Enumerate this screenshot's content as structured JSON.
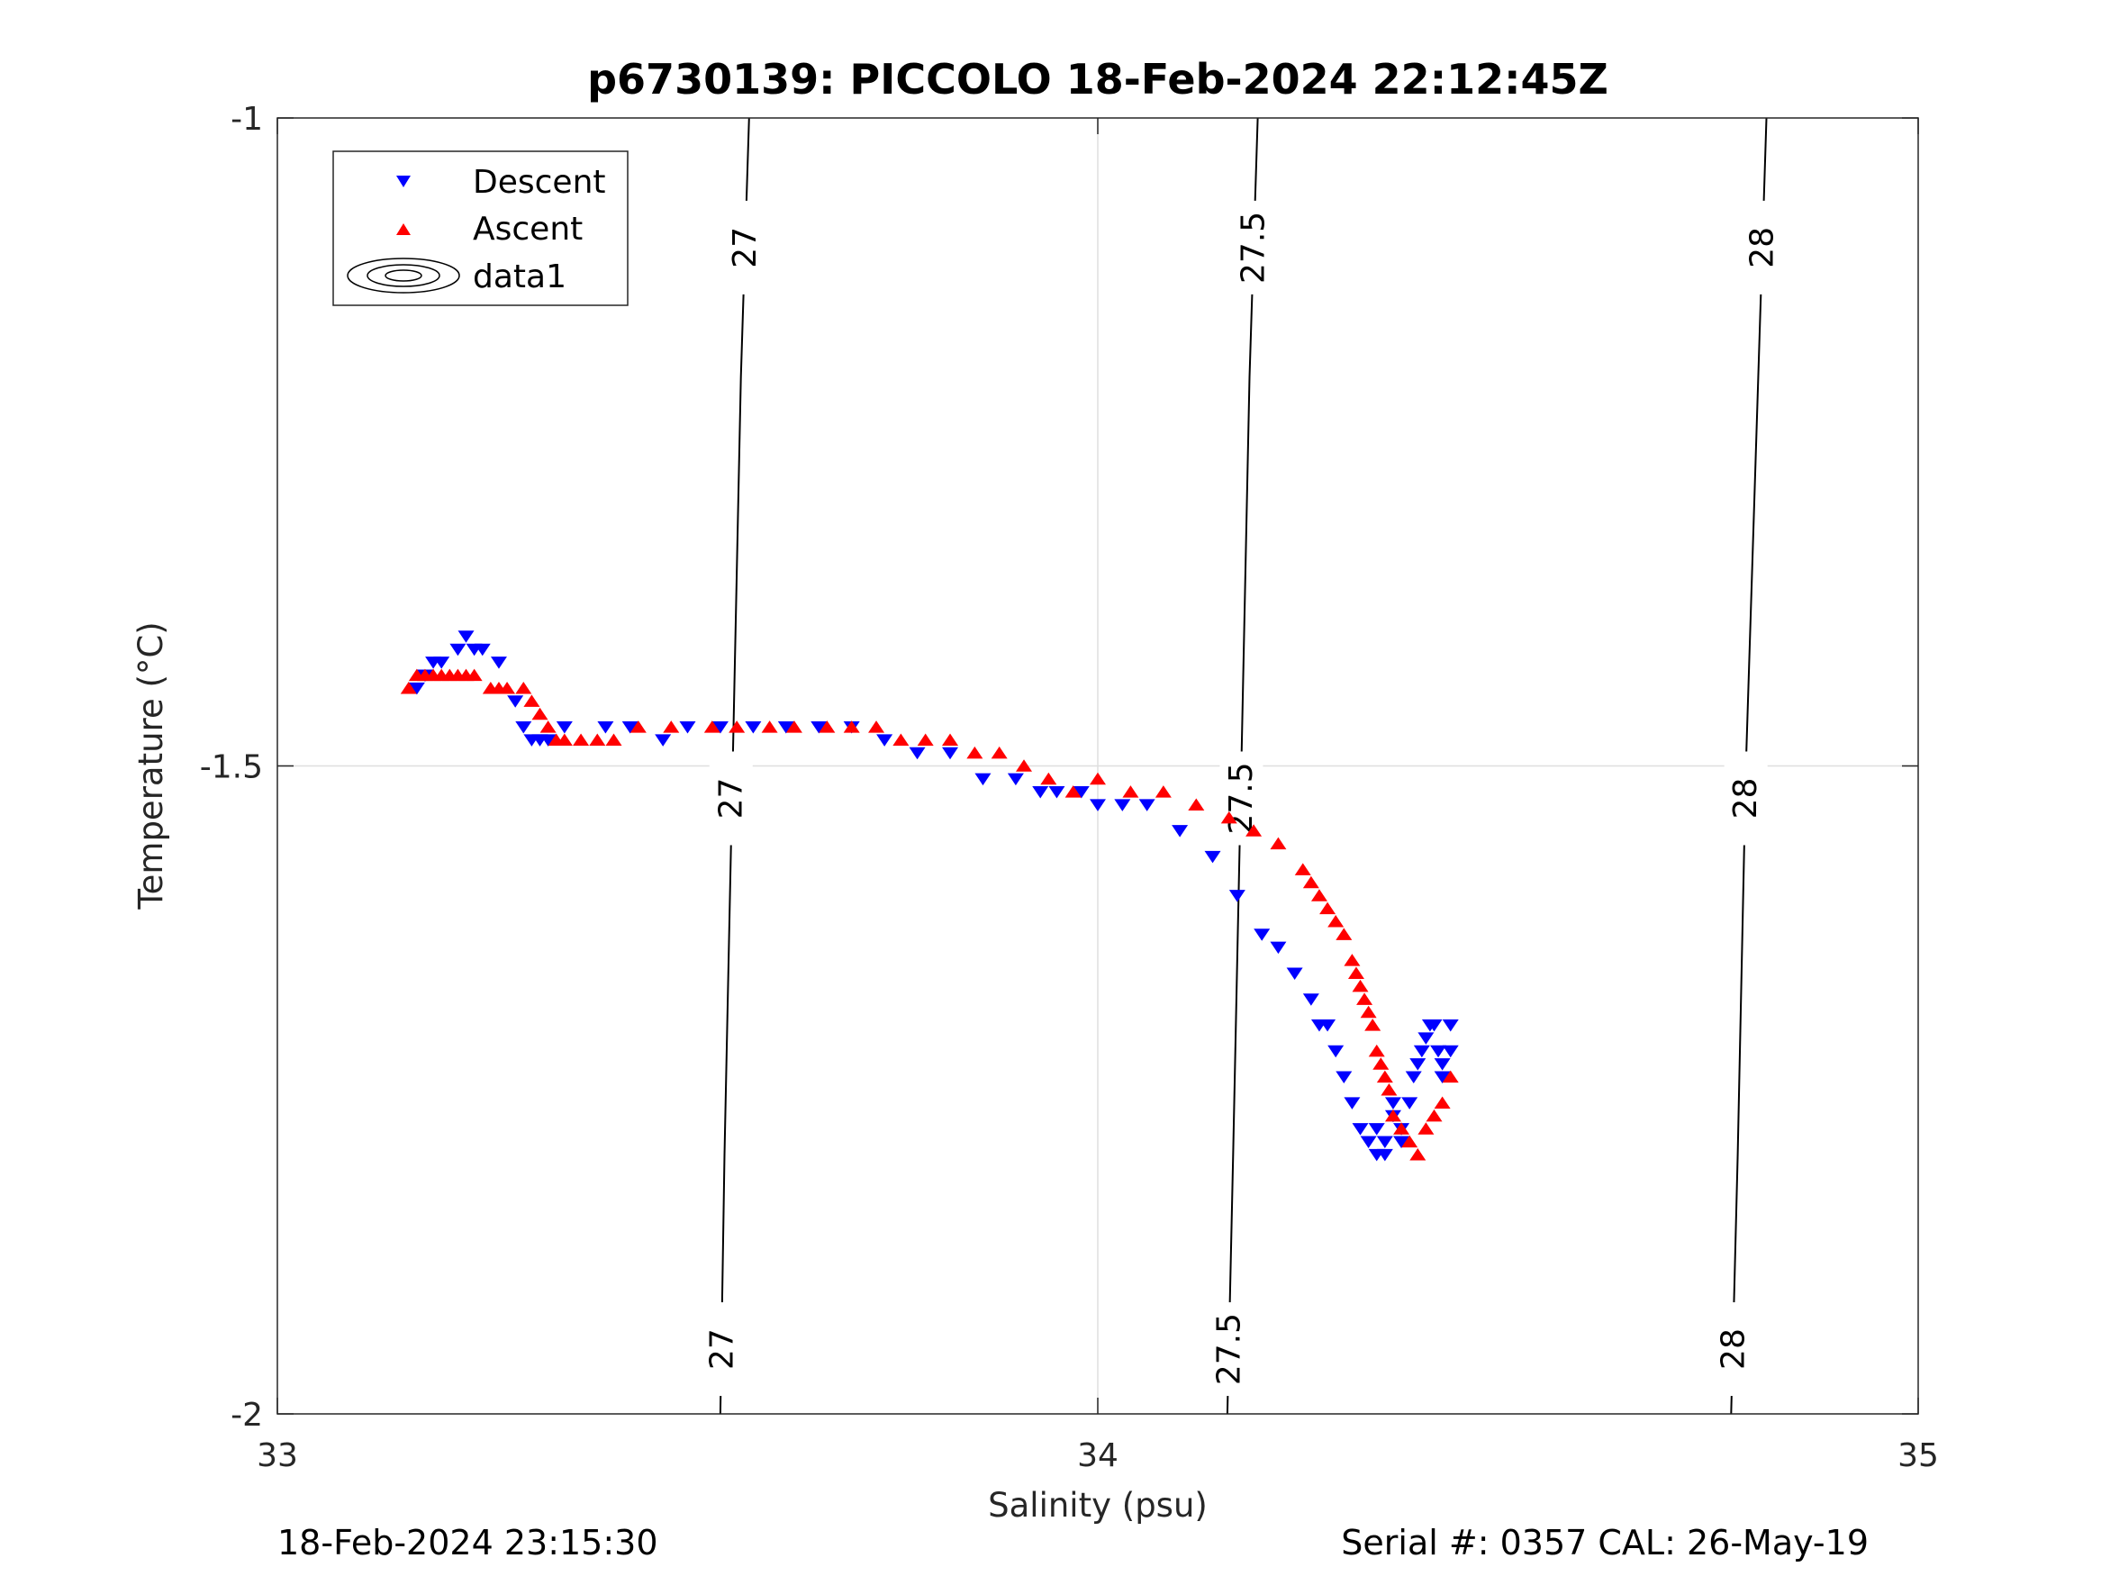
{
  "chart_data": {
    "type": "scatter",
    "title": "p6730139: PICCOLO 18-Feb-2024 22:12:45Z",
    "xlabel": "Salinity (psu)",
    "ylabel": "Temperature (°C)",
    "xlim": [
      33,
      35
    ],
    "ylim": [
      -2,
      -1
    ],
    "xticks": [
      33,
      34,
      35
    ],
    "xtick_labels": [
      "33",
      "34",
      "35"
    ],
    "yticks": [
      -2,
      -1.5,
      -1
    ],
    "ytick_labels": [
      "-2",
      "-1.5",
      "-1"
    ],
    "grid": true,
    "legend_position": "top-left",
    "legend": [
      "Descent",
      "Ascent",
      "data1"
    ],
    "colors": {
      "descent": "#0000ff",
      "ascent": "#ff0000",
      "contour": "#000000",
      "grid": "#dfdfdf"
    },
    "contours": [
      {
        "level": "27",
        "points": [
          [
            33.575,
            -1.0
          ],
          [
            33.565,
            -1.2
          ],
          [
            33.555,
            -1.5
          ],
          [
            33.545,
            -1.8
          ],
          [
            33.54,
            -2.0
          ]
        ],
        "labels": [
          {
            "x": 33.57,
            "y": -1.1
          },
          {
            "x": 33.553,
            "y": -1.525
          },
          {
            "x": 33.542,
            "y": -1.95
          }
        ]
      },
      {
        "level": "27.5",
        "points": [
          [
            34.195,
            -1.0
          ],
          [
            34.185,
            -1.2
          ],
          [
            34.175,
            -1.5
          ],
          [
            34.165,
            -1.8
          ],
          [
            34.158,
            -2.0
          ]
        ],
        "labels": [
          {
            "x": 34.19,
            "y": -1.1
          },
          {
            "x": 34.175,
            "y": -1.525
          },
          {
            "x": 34.16,
            "y": -1.95
          }
        ]
      },
      {
        "level": "28",
        "points": [
          [
            34.815,
            -1.0
          ],
          [
            34.805,
            -1.2
          ],
          [
            34.79,
            -1.5
          ],
          [
            34.78,
            -1.8
          ],
          [
            34.772,
            -2.0
          ]
        ],
        "labels": [
          {
            "x": 34.81,
            "y": -1.1
          },
          {
            "x": 34.79,
            "y": -1.525
          },
          {
            "x": 34.775,
            "y": -1.95
          }
        ]
      }
    ],
    "series": [
      {
        "name": "Descent",
        "marker": "triangle-down",
        "x": [
          33.17,
          33.18,
          33.19,
          33.2,
          33.22,
          33.23,
          33.24,
          33.25,
          33.27,
          33.29,
          33.3,
          33.31,
          33.32,
          33.33,
          33.35,
          33.4,
          33.43,
          33.47,
          33.5,
          33.54,
          33.58,
          33.62,
          33.66,
          33.7,
          33.74,
          33.78,
          33.82,
          33.86,
          33.9,
          33.93,
          33.95,
          33.98,
          34.0,
          34.03,
          34.06,
          34.1,
          34.14,
          34.17,
          34.2,
          34.22,
          34.24,
          34.26,
          34.27,
          34.28,
          34.29,
          34.3,
          34.31,
          34.32,
          34.33,
          34.34,
          34.34,
          34.35,
          34.35,
          34.36,
          34.36,
          34.37,
          34.37,
          34.38,
          34.385,
          34.39,
          34.395,
          34.4,
          34.405,
          34.41,
          34.415,
          34.42,
          34.42,
          34.43,
          34.43
        ],
        "y": [
          -1.44,
          -1.43,
          -1.42,
          -1.42,
          -1.41,
          -1.4,
          -1.41,
          -1.41,
          -1.42,
          -1.45,
          -1.47,
          -1.48,
          -1.48,
          -1.48,
          -1.47,
          -1.47,
          -1.47,
          -1.48,
          -1.47,
          -1.47,
          -1.47,
          -1.47,
          -1.47,
          -1.47,
          -1.48,
          -1.49,
          -1.49,
          -1.51,
          -1.51,
          -1.52,
          -1.52,
          -1.52,
          -1.53,
          -1.53,
          -1.53,
          -1.55,
          -1.57,
          -1.6,
          -1.63,
          -1.64,
          -1.66,
          -1.68,
          -1.7,
          -1.7,
          -1.72,
          -1.74,
          -1.76,
          -1.78,
          -1.79,
          -1.8,
          -1.78,
          -1.8,
          -1.79,
          -1.77,
          -1.76,
          -1.79,
          -1.78,
          -1.76,
          -1.74,
          -1.73,
          -1.72,
          -1.71,
          -1.7,
          -1.7,
          -1.72,
          -1.73,
          -1.74,
          -1.7,
          -1.72
        ]
      },
      {
        "name": "Ascent",
        "marker": "triangle-up",
        "x": [
          33.16,
          33.17,
          33.18,
          33.19,
          33.2,
          33.21,
          33.22,
          33.23,
          33.24,
          33.26,
          33.27,
          33.28,
          33.3,
          33.31,
          33.32,
          33.33,
          33.34,
          33.35,
          33.37,
          33.39,
          33.41,
          33.44,
          33.48,
          33.53,
          33.56,
          33.6,
          33.63,
          33.67,
          33.7,
          33.73,
          33.76,
          33.79,
          33.82,
          33.85,
          33.88,
          33.91,
          33.94,
          33.97,
          34.0,
          34.04,
          34.08,
          34.12,
          34.16,
          34.19,
          34.22,
          34.25,
          34.26,
          34.27,
          34.28,
          34.29,
          34.3,
          34.31,
          34.315,
          34.32,
          34.325,
          34.33,
          34.335,
          34.34,
          34.345,
          34.35,
          34.355,
          34.36,
          34.37,
          34.38,
          34.39,
          34.4,
          34.41,
          34.42,
          34.43
        ],
        "y": [
          -1.44,
          -1.43,
          -1.43,
          -1.43,
          -1.43,
          -1.43,
          -1.43,
          -1.43,
          -1.43,
          -1.44,
          -1.44,
          -1.44,
          -1.44,
          -1.45,
          -1.46,
          -1.47,
          -1.48,
          -1.48,
          -1.48,
          -1.48,
          -1.48,
          -1.47,
          -1.47,
          -1.47,
          -1.47,
          -1.47,
          -1.47,
          -1.47,
          -1.47,
          -1.47,
          -1.48,
          -1.48,
          -1.48,
          -1.49,
          -1.49,
          -1.5,
          -1.51,
          -1.52,
          -1.51,
          -1.52,
          -1.52,
          -1.53,
          -1.54,
          -1.55,
          -1.56,
          -1.58,
          -1.59,
          -1.6,
          -1.61,
          -1.62,
          -1.63,
          -1.65,
          -1.66,
          -1.67,
          -1.68,
          -1.69,
          -1.7,
          -1.72,
          -1.73,
          -1.74,
          -1.75,
          -1.77,
          -1.78,
          -1.79,
          -1.8,
          -1.78,
          -1.77,
          -1.76,
          -1.74
        ]
      }
    ]
  },
  "footer": {
    "timestamp": "18-Feb-2024 23:15:30",
    "serial": "Serial #: 0357  CAL: 26-May-19"
  }
}
